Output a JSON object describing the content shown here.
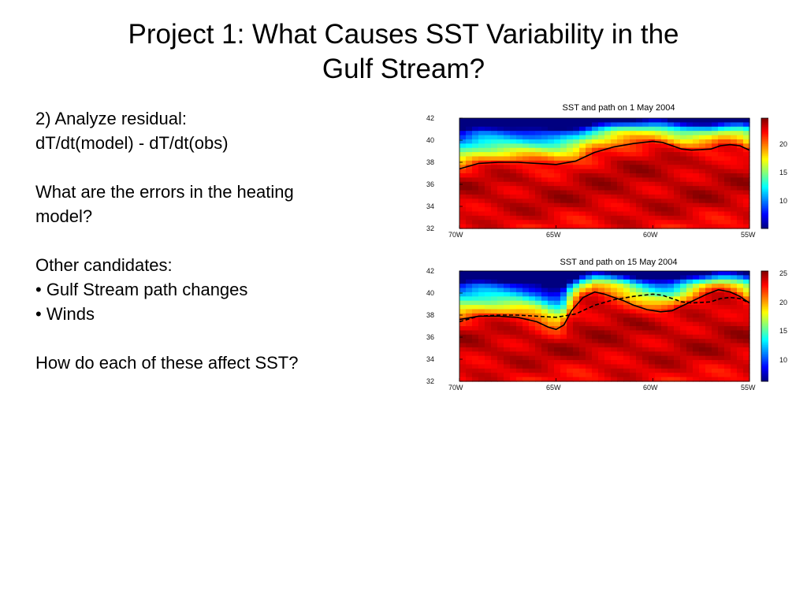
{
  "slide": {
    "title_line1": "Project 1: What Causes SST Variability in the",
    "title_line2": "Gulf Stream?"
  },
  "content": {
    "lines": [
      "2) Analyze residual:",
      "dT/dt(model) - dT/dt(obs)",
      "",
      "What are the errors in the heating",
      "model?",
      "",
      "Other candidates:",
      "• Gulf Stream path changes",
      "• Winds",
      "",
      "How do each of these affect SST?"
    ]
  },
  "chart_data": [
    {
      "type": "heatmap",
      "title": "SST and path on 1 May 2004",
      "x_ticks": [
        "70W",
        "65W",
        "60W",
        "55W"
      ],
      "y_ticks": [
        "42",
        "40",
        "38",
        "36",
        "34",
        "32"
      ],
      "colorbar_ticks": [
        "20",
        "15",
        "10"
      ],
      "xlim": [
        -70,
        -55
      ],
      "ylim": [
        32,
        42
      ],
      "colorbar_range": [
        7,
        25
      ],
      "colormap": "jet",
      "path_solid": {
        "lon": [
          -70,
          -69,
          -68,
          -67,
          -66,
          -65,
          -64,
          -63,
          -62,
          -61,
          -60,
          -59.5,
          -59,
          -58.5,
          -58,
          -57,
          -56.5,
          -56,
          -55.5,
          -55
        ],
        "lat": [
          37.4,
          37.9,
          38.0,
          38.0,
          37.9,
          37.8,
          38.1,
          38.9,
          39.4,
          39.7,
          39.9,
          39.8,
          39.5,
          39.2,
          39.1,
          39.2,
          39.5,
          39.6,
          39.5,
          39.1
        ]
      }
    },
    {
      "type": "heatmap",
      "title": "SST and path on 15 May 2004",
      "x_ticks": [
        "70W",
        "65W",
        "60W",
        "55W"
      ],
      "y_ticks": [
        "42",
        "40",
        "38",
        "36",
        "34",
        "32"
      ],
      "colorbar_ticks": [
        "25",
        "20",
        "15",
        "10"
      ],
      "xlim": [
        -70,
        -55
      ],
      "ylim": [
        32,
        42
      ],
      "colorbar_range": [
        7,
        25
      ],
      "colormap": "jet",
      "path_solid": {
        "lon": [
          -70,
          -69,
          -68,
          -67,
          -66,
          -65.4,
          -65,
          -64.6,
          -64.2,
          -63.6,
          -63,
          -62.5,
          -62,
          -61.5,
          -61,
          -60.3,
          -59.6,
          -59,
          -58.4,
          -57.8,
          -57.2,
          -56.6,
          -56,
          -55.5,
          -55
        ],
        "lat": [
          37.6,
          37.9,
          37.9,
          37.8,
          37.4,
          36.9,
          36.7,
          37.1,
          38.4,
          39.6,
          40.1,
          39.9,
          39.6,
          39.3,
          38.9,
          38.5,
          38.3,
          38.4,
          38.9,
          39.4,
          39.9,
          40.3,
          40.1,
          39.7,
          39.1
        ]
      },
      "path_dashed": {
        "lon": [
          -70,
          -69,
          -68,
          -67,
          -66,
          -65,
          -64,
          -63,
          -62,
          -61,
          -60,
          -59.5,
          -59,
          -58.5,
          -58,
          -57,
          -56.5,
          -56,
          -55.5,
          -55
        ],
        "lat": [
          37.4,
          37.9,
          38.0,
          38.0,
          37.9,
          37.8,
          38.1,
          38.9,
          39.4,
          39.7,
          39.9,
          39.8,
          39.5,
          39.2,
          39.1,
          39.2,
          39.5,
          39.6,
          39.5,
          39.1
        ]
      }
    }
  ]
}
